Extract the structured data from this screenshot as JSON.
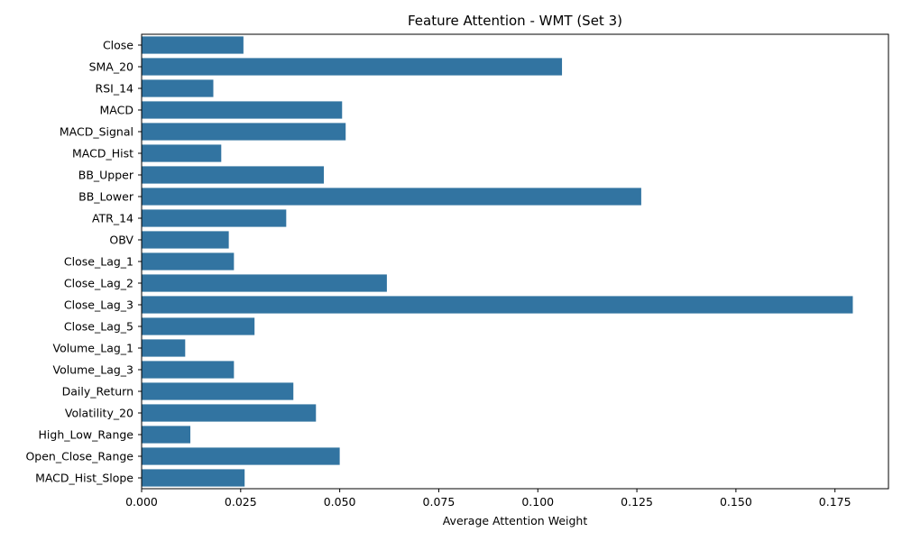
{
  "chart_data": {
    "type": "bar",
    "orientation": "horizontal",
    "title": "Feature Attention - WMT (Set 3)",
    "xlabel": "Average Attention Weight",
    "ylabel": "",
    "xlim": [
      0,
      0.1885
    ],
    "x_ticks": [
      0.0,
      0.025,
      0.05,
      0.075,
      0.1,
      0.125,
      0.15,
      0.175
    ],
    "x_tick_labels": [
      "0.000",
      "0.025",
      "0.050",
      "0.075",
      "0.100",
      "0.125",
      "0.150",
      "0.175"
    ],
    "grid": false,
    "bar_color": "#3274a1",
    "categories": [
      "Close",
      "SMA_20",
      "RSI_14",
      "MACD",
      "MACD_Signal",
      "MACD_Hist",
      "BB_Upper",
      "BB_Lower",
      "ATR_14",
      "OBV",
      "Close_Lag_1",
      "Close_Lag_2",
      "Close_Lag_3",
      "Close_Lag_5",
      "Volume_Lag_1",
      "Volume_Lag_3",
      "Daily_Return",
      "Volatility_20",
      "High_Low_Range",
      "Open_Close_Range",
      "MACD_Hist_Slope"
    ],
    "values": [
      0.0257,
      0.1061,
      0.0181,
      0.0506,
      0.0515,
      0.0201,
      0.046,
      0.1261,
      0.0365,
      0.022,
      0.0233,
      0.0619,
      0.1795,
      0.0285,
      0.011,
      0.0233,
      0.0383,
      0.044,
      0.0123,
      0.05,
      0.026
    ]
  }
}
